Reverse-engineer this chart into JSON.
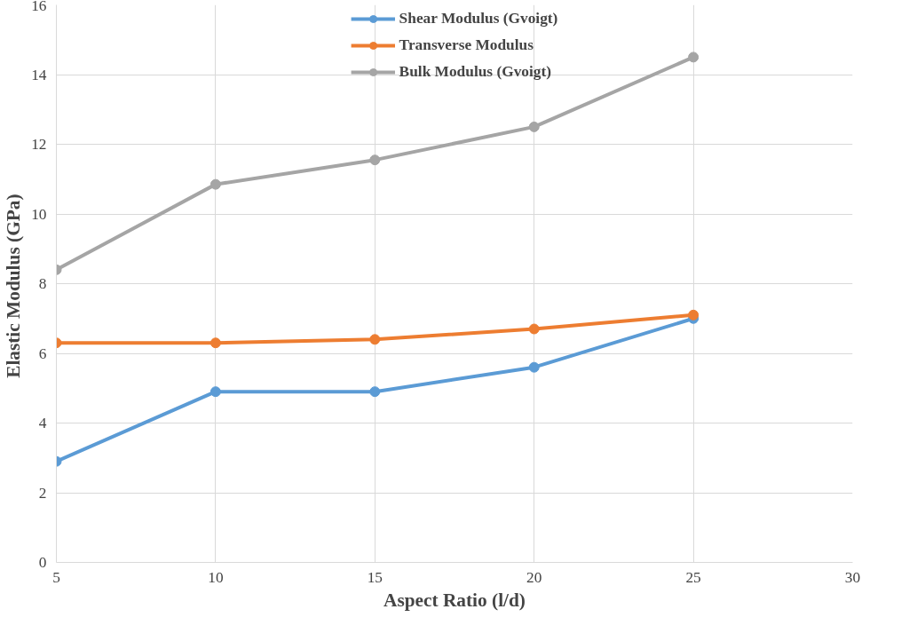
{
  "chart_data": {
    "type": "line",
    "xlabel": "Aspect Ratio (l/d)",
    "ylabel": "Elastic Modulus  (GPa)",
    "x": [
      5,
      10,
      15,
      20,
      25
    ],
    "series": [
      {
        "name": "Shear Modulus (Gvoigt)",
        "color": "#5b9bd5",
        "values": [
          2.9,
          4.9,
          4.9,
          5.6,
          7.0
        ]
      },
      {
        "name": "Transverse Modulus",
        "color": "#ed7d31",
        "values": [
          6.3,
          6.3,
          6.4,
          6.7,
          7.1
        ]
      },
      {
        "name": "Bulk Modulus (Gvoigt)",
        "color": "#a5a5a5",
        "values": [
          8.4,
          10.85,
          11.55,
          12.5,
          14.5
        ]
      }
    ],
    "xlim": [
      5,
      30
    ],
    "xticks": [
      5,
      10,
      15,
      20,
      25,
      30
    ],
    "ylim": [
      0,
      16
    ],
    "yticks": [
      0,
      2,
      4,
      6,
      8,
      10,
      12,
      14,
      16
    ],
    "grid": true,
    "legend": "top",
    "marker": "circle",
    "line_style": "solid"
  }
}
